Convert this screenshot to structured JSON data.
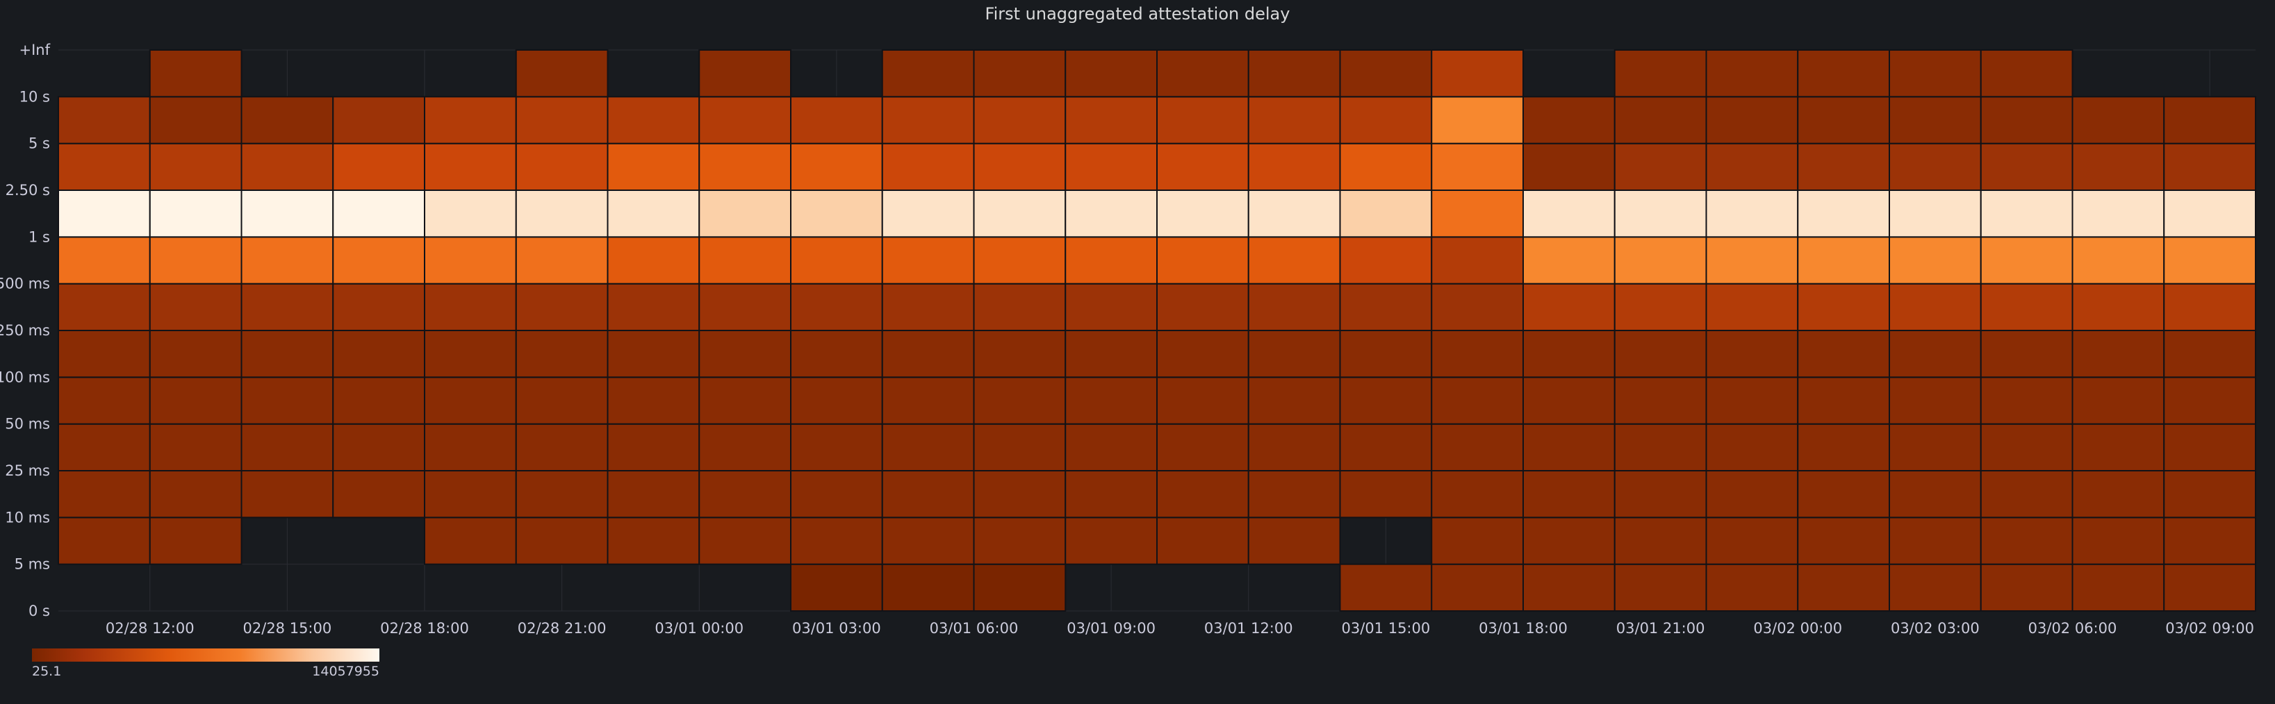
{
  "panel": {
    "title": "First unaggregated attestation delay"
  },
  "legend": {
    "min_label": "25.1",
    "max_label": "14057955"
  },
  "colors": {
    "empty": "#181b1f",
    "grid": "#2a2d33",
    "cell_border": "#111217",
    "scale": [
      "#7a2500",
      "#8a2c04",
      "#9c3307",
      "#b33c08",
      "#cc470a",
      "#e25a0d",
      "#f0701c",
      "#f7882f",
      "#fbd0a8",
      "#fde3c8",
      "#fff4e6"
    ]
  },
  "chart_data": {
    "type": "heatmap",
    "title": "First unaggregated attestation delay",
    "x_labels": [
      "02/28 12:00",
      "02/28 15:00",
      "02/28 18:00",
      "02/28 21:00",
      "03/01 00:00",
      "03/01 03:00",
      "03/01 06:00",
      "03/01 09:00",
      "03/01 12:00",
      "03/01 15:00",
      "03/01 18:00",
      "03/01 21:00",
      "03/02 00:00",
      "03/02 03:00",
      "03/02 06:00",
      "03/02 09:00"
    ],
    "x_bucket_count": 24,
    "y_labels": [
      "0 s",
      "5 ms",
      "10 ms",
      "25 ms",
      "50 ms",
      "100 ms",
      "250 ms",
      "500 ms",
      "1 s",
      "2.50 s",
      "5 s",
      "10 s",
      "+Inf"
    ],
    "legend_min": 25.1,
    "legend_max": 14057955,
    "intensity_scale_note_levels": 10,
    "rows_bottom_to_top": [
      {
        "bucket": "0 s - 5 ms",
        "levels": [
          -1,
          -1,
          -1,
          -1,
          -1,
          -1,
          -1,
          -1,
          0,
          0,
          0,
          -1,
          -1,
          -1,
          1,
          1,
          1,
          1,
          1,
          1,
          1,
          1,
          1,
          1
        ]
      },
      {
        "bucket": "5 ms - 10 ms",
        "levels": [
          1,
          1,
          -1,
          -1,
          1,
          1,
          1,
          1,
          1,
          1,
          1,
          1,
          1,
          1,
          -1,
          1,
          1,
          1,
          1,
          1,
          1,
          1,
          1,
          1
        ]
      },
      {
        "bucket": "10 ms - 25 ms",
        "levels": [
          1,
          1,
          1,
          1,
          1,
          1,
          1,
          1,
          1,
          1,
          1,
          1,
          1,
          1,
          1,
          1,
          1,
          1,
          1,
          1,
          1,
          1,
          1,
          1
        ]
      },
      {
        "bucket": "25 ms - 50 ms",
        "levels": [
          1,
          1,
          1,
          1,
          1,
          1,
          1,
          1,
          1,
          1,
          1,
          1,
          1,
          1,
          1,
          1,
          1,
          1,
          1,
          1,
          1,
          1,
          1,
          1
        ]
      },
      {
        "bucket": "50 ms - 100 ms",
        "levels": [
          1,
          1,
          1,
          1,
          1,
          1,
          1,
          1,
          1,
          1,
          1,
          1,
          1,
          1,
          1,
          1,
          1,
          1,
          1,
          1,
          1,
          1,
          1,
          1
        ]
      },
      {
        "bucket": "100 ms - 250 ms",
        "levels": [
          1,
          1,
          1,
          1,
          1,
          1,
          1,
          1,
          1,
          1,
          1,
          1,
          1,
          1,
          1,
          1,
          1,
          1,
          1,
          1,
          1,
          1,
          1,
          1
        ]
      },
      {
        "bucket": "250 ms - 500 ms",
        "levels": [
          2,
          2,
          2,
          2,
          2,
          2,
          2,
          2,
          2,
          2,
          2,
          2,
          2,
          2,
          2,
          2,
          3,
          3,
          3,
          3,
          3,
          3,
          3,
          3
        ]
      },
      {
        "bucket": "500 ms - 1 s",
        "levels": [
          6,
          6,
          6,
          6,
          6,
          6,
          5,
          5,
          5,
          5,
          5,
          5,
          5,
          5,
          4,
          3,
          7,
          7,
          7,
          7,
          7,
          7,
          7,
          7
        ]
      },
      {
        "bucket": "1 s - 2.50 s",
        "levels": [
          10,
          10,
          10,
          10,
          9,
          9,
          9,
          8,
          8,
          9,
          9,
          9,
          9,
          9,
          8,
          6,
          9,
          9,
          9,
          9,
          9,
          9,
          9,
          9
        ]
      },
      {
        "bucket": "2.50 s - 5 s",
        "levels": [
          3,
          3,
          3,
          4,
          4,
          4,
          5,
          5,
          5,
          4,
          4,
          4,
          4,
          4,
          5,
          6,
          1,
          2,
          2,
          2,
          2,
          2,
          2,
          2
        ]
      },
      {
        "bucket": "5 s - 10 s",
        "levels": [
          2,
          1,
          1,
          2,
          3,
          3,
          3,
          3,
          3,
          3,
          3,
          3,
          3,
          3,
          3,
          7,
          1,
          1,
          1,
          1,
          1,
          1,
          1,
          1
        ]
      },
      {
        "bucket": "10 s - +Inf",
        "levels": [
          -1,
          1,
          -1,
          -1,
          -1,
          1,
          -1,
          1,
          -1,
          1,
          1,
          1,
          1,
          1,
          1,
          3,
          -1,
          1,
          1,
          1,
          1,
          1,
          -1,
          -1
        ]
      }
    ],
    "grid": true,
    "legend_position": "bottom-left"
  }
}
